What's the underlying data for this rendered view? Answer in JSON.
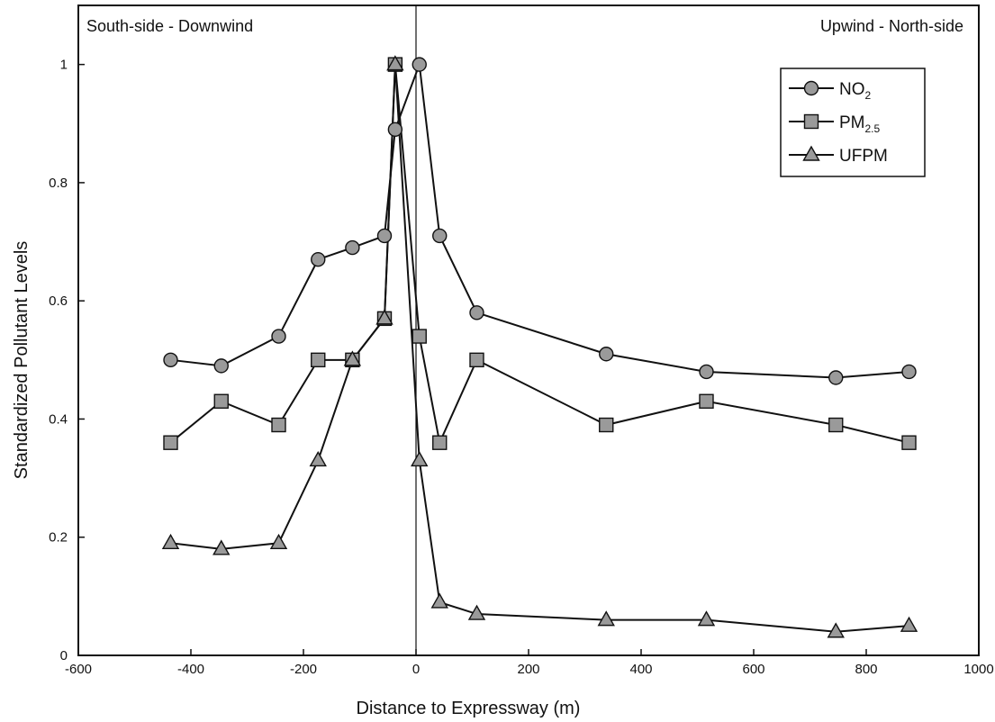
{
  "chart_data": {
    "type": "line",
    "title": "",
    "xlabel": "Distance to Expressway (m)",
    "ylabel": "Standardized Pollutant Levels",
    "xlim": [
      -600,
      1000
    ],
    "ylim": [
      0,
      1.1
    ],
    "x_ticks": [
      -600,
      -400,
      -200,
      0,
      200,
      400,
      600,
      800,
      1000
    ],
    "x_tick_labels": [
      "-600",
      "-400",
      "-200",
      "0",
      "200",
      "400",
      "600",
      "800",
      "1000"
    ],
    "y_ticks": [
      0,
      0.2,
      0.4,
      0.6,
      0.8,
      1
    ],
    "y_tick_labels": [
      "0",
      "0.2",
      "0.4",
      "0.6",
      "0.8",
      "1"
    ],
    "grid": false,
    "reference_line_x": 0,
    "annotations": {
      "left": "South-side - Downwind",
      "right": "Upwind - North-side"
    },
    "legend": {
      "position": "top-right",
      "entries": [
        {
          "main": "NO",
          "sub": "2",
          "marker": "circle"
        },
        {
          "main": "PM",
          "sub": "2.5",
          "marker": "square"
        },
        {
          "main": "UFPM",
          "sub": "",
          "marker": "triangle"
        }
      ]
    },
    "series": [
      {
        "name": "NO2",
        "marker": "circle",
        "x": [
          -436,
          -346,
          -244,
          -174,
          -113,
          -56,
          -37,
          6,
          42,
          108,
          338,
          516,
          746,
          876
        ],
        "y": [
          0.5,
          0.49,
          0.54,
          0.67,
          0.69,
          0.71,
          0.89,
          1.0,
          0.71,
          0.58,
          0.51,
          0.48,
          0.47,
          0.48
        ]
      },
      {
        "name": "PM2.5",
        "marker": "square",
        "x": [
          -436,
          -346,
          -244,
          -174,
          -113,
          -56,
          -37,
          6,
          42,
          108,
          338,
          516,
          746,
          876
        ],
        "y": [
          0.36,
          0.43,
          0.39,
          0.5,
          0.5,
          0.57,
          1.0,
          0.54,
          0.36,
          0.5,
          0.39,
          0.43,
          0.39,
          0.36
        ]
      },
      {
        "name": "UFPM",
        "marker": "triangle",
        "x": [
          -436,
          -346,
          -244,
          -174,
          -113,
          -56,
          -37,
          6,
          42,
          108,
          338,
          516,
          746,
          876
        ],
        "y": [
          0.19,
          0.18,
          0.19,
          0.33,
          0.5,
          0.57,
          1.0,
          0.33,
          0.09,
          0.07,
          0.06,
          0.06,
          0.04,
          0.05
        ]
      }
    ],
    "colors": {
      "line": "#111111",
      "marker_fill": "#9a9a9a",
      "axis": "#111111"
    }
  }
}
